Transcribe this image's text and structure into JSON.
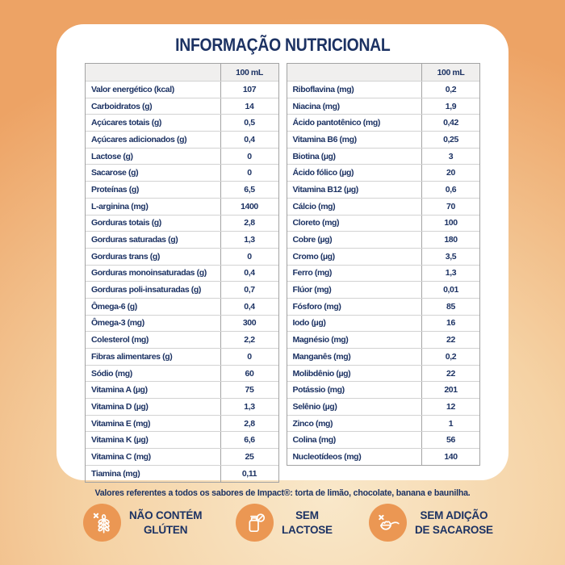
{
  "title": "INFORMAÇÃO NUTRICIONAL",
  "tables": {
    "left": {
      "header": "100 mL",
      "rows": [
        {
          "label": "Valor energético (kcal)",
          "value": "107"
        },
        {
          "label": "Carboidratos (g)",
          "value": "14"
        },
        {
          "label": "Açúcares totais (g)",
          "value": "0,5"
        },
        {
          "label": "Açúcares adicionados (g)",
          "value": "0,4"
        },
        {
          "label": "Lactose (g)",
          "value": "0"
        },
        {
          "label": "Sacarose (g)",
          "value": "0"
        },
        {
          "label": "Proteínas (g)",
          "value": "6,5"
        },
        {
          "label": "L-arginina (mg)",
          "value": "1400"
        },
        {
          "label": "Gorduras totais (g)",
          "value": "2,8"
        },
        {
          "label": "Gorduras saturadas (g)",
          "value": "1,3"
        },
        {
          "label": "Gorduras trans (g)",
          "value": "0"
        },
        {
          "label": "Gorduras monoinsaturadas (g)",
          "value": "0,4"
        },
        {
          "label": "Gorduras poli-insaturadas (g)",
          "value": "0,7"
        },
        {
          "label": "Ômega-6 (g)",
          "value": "0,4"
        },
        {
          "label": "Ômega-3 (mg)",
          "value": "300"
        },
        {
          "label": "Colesterol (mg)",
          "value": "2,2"
        },
        {
          "label": "Fibras alimentares (g)",
          "value": "0"
        },
        {
          "label": "Sódio (mg)",
          "value": "60"
        },
        {
          "label": "Vitamina A (µg)",
          "value": "75"
        },
        {
          "label": "Vitamina D (µg)",
          "value": "1,3"
        },
        {
          "label": "Vitamina E (mg)",
          "value": "2,8"
        },
        {
          "label": "Vitamina K (µg)",
          "value": "6,6"
        },
        {
          "label": "Vitamina C (mg)",
          "value": "25"
        },
        {
          "label": "Tiamina (mg)",
          "value": "0,11"
        }
      ]
    },
    "right": {
      "header": "100 mL",
      "rows": [
        {
          "label": "Riboflavina (mg)",
          "value": "0,2"
        },
        {
          "label": "Niacina (mg)",
          "value": "1,9"
        },
        {
          "label": "Ácido pantotênico (mg)",
          "value": "0,42"
        },
        {
          "label": "Vitamina B6 (mg)",
          "value": "0,25"
        },
        {
          "label": "Biotina (µg)",
          "value": "3"
        },
        {
          "label": "Ácido fólico (µg)",
          "value": "20"
        },
        {
          "label": "Vitamina B12 (µg)",
          "value": "0,6"
        },
        {
          "label": "Cálcio (mg)",
          "value": "70"
        },
        {
          "label": "Cloreto (mg)",
          "value": "100"
        },
        {
          "label": "Cobre (µg)",
          "value": "180"
        },
        {
          "label": "Cromo (µg)",
          "value": "3,5"
        },
        {
          "label": "Ferro (mg)",
          "value": "1,3"
        },
        {
          "label": "Flúor (mg)",
          "value": "0,01"
        },
        {
          "label": "Fósforo (mg)",
          "value": "85"
        },
        {
          "label": "Iodo (µg)",
          "value": "16"
        },
        {
          "label": "Magnésio (mg)",
          "value": "22"
        },
        {
          "label": "Manganês (mg)",
          "value": "0,2"
        },
        {
          "label": "Molibdênio (µg)",
          "value": "22"
        },
        {
          "label": "Potássio (mg)",
          "value": "201"
        },
        {
          "label": "Selênio (µg)",
          "value": "12"
        },
        {
          "label": "Zinco (mg)",
          "value": "1"
        },
        {
          "label": "Colina (mg)",
          "value": "56"
        },
        {
          "label": "Nucleotídeos (mg)",
          "value": "140"
        }
      ]
    }
  },
  "footnote": "Valores referentes a todos os sabores de Impact®: torta de limão, chocolate, banana e baunilha.",
  "badges": [
    {
      "icon": "no-gluten-icon",
      "lines": [
        "NÃO CONTÉM",
        "GLÚTEN"
      ]
    },
    {
      "icon": "no-lactose-icon",
      "lines": [
        "SEM",
        "LACTOSE"
      ]
    },
    {
      "icon": "no-sucrose-icon",
      "lines": [
        "SEM ADIÇÃO",
        "DE SACAROSE"
      ]
    }
  ],
  "colors": {
    "navy_text": "#1c3263",
    "badge_orange": "#eb9753",
    "table_header_bg": "#f0efee",
    "table_border": "#a3a3a3",
    "row_divider": "#d2d2d2",
    "background_outer": "#eda365",
    "background_center": "#f9e8ca",
    "card_bg": "#ffffff"
  }
}
